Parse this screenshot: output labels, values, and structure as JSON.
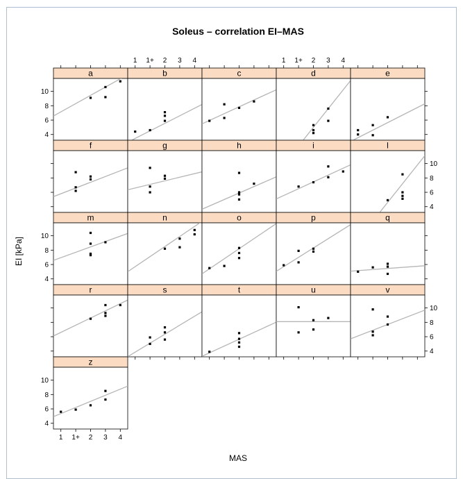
{
  "chart_data": {
    "type": "scatter",
    "title": "Soleus – correlation EI–MAS",
    "xlabel": "MAS",
    "ylabel": "EI [kPa]",
    "x_categories": [
      "1",
      "1+",
      "2",
      "3",
      "4"
    ],
    "xlim": [
      0.5,
      5.5
    ],
    "ylim": [
      3.2,
      11.8
    ],
    "y_ticks": [
      4,
      6,
      8,
      10
    ],
    "grid": false,
    "legend": "none",
    "colors": {
      "strip": "#fbdcc2",
      "point": "#000000",
      "line": "#b5b5b5"
    },
    "panels": [
      {
        "name": "a",
        "points": [
          [
            3,
            9.1
          ],
          [
            4,
            9.2
          ],
          [
            4,
            10.6
          ],
          [
            5,
            11.4
          ]
        ],
        "line": [
          6.0,
          1.15
        ]
      },
      {
        "name": "b",
        "points": [
          [
            1,
            4.4
          ],
          [
            2,
            4.6
          ],
          [
            3,
            5.9
          ],
          [
            3,
            6.6
          ],
          [
            3,
            7.1
          ]
        ],
        "line": [
          2.4,
          1.05
        ]
      },
      {
        "name": "c",
        "points": [
          [
            1,
            5.9
          ],
          [
            2,
            6.3
          ],
          [
            2,
            8.2
          ],
          [
            3,
            7.7
          ],
          [
            4,
            8.6
          ]
        ],
        "line": [
          5.0,
          0.95
        ]
      },
      {
        "name": "d",
        "points": [
          [
            3,
            4.2
          ],
          [
            3,
            4.6
          ],
          [
            3,
            5.3
          ],
          [
            4,
            5.9
          ],
          [
            4,
            7.6
          ]
        ],
        "line": [
          -2.8,
          2.6
        ]
      },
      {
        "name": "e",
        "points": [
          [
            1,
            4.0
          ],
          [
            1,
            4.6
          ],
          [
            2,
            5.3
          ],
          [
            2,
            3.9
          ],
          [
            3,
            6.4
          ]
        ],
        "line": [
          2.5,
          1.05
        ]
      },
      {
        "name": "f",
        "points": [
          [
            2,
            8.8
          ],
          [
            2,
            6.7
          ],
          [
            2,
            6.2
          ],
          [
            3,
            7.8
          ],
          [
            3,
            8.2
          ]
        ],
        "line": [
          5.0,
          0.8
        ]
      },
      {
        "name": "g",
        "points": [
          [
            2,
            9.4
          ],
          [
            2,
            6.8
          ],
          [
            2,
            6.0
          ],
          [
            3,
            7.9
          ],
          [
            3,
            8.3
          ]
        ],
        "line": [
          6.1,
          0.5
        ]
      },
      {
        "name": "h",
        "points": [
          [
            3,
            8.7
          ],
          [
            3,
            6.0
          ],
          [
            3,
            5.7
          ],
          [
            3,
            5.0
          ],
          [
            4,
            7.2
          ]
        ],
        "line": [
          3.2,
          0.9
        ]
      },
      {
        "name": "i",
        "points": [
          [
            2,
            6.8
          ],
          [
            3,
            7.4
          ],
          [
            4,
            8.1
          ],
          [
            4,
            9.6
          ],
          [
            5,
            8.9
          ]
        ],
        "line": [
          4.6,
          0.95
        ]
      },
      {
        "name": "l",
        "points": [
          [
            3,
            4.9
          ],
          [
            4,
            8.5
          ],
          [
            4,
            6.0
          ],
          [
            4,
            5.5
          ],
          [
            4,
            5.1
          ]
        ],
        "line": [
          -3.2,
          2.6
        ]
      },
      {
        "name": "m",
        "points": [
          [
            3,
            10.4
          ],
          [
            3,
            8.9
          ],
          [
            3,
            7.5
          ],
          [
            3,
            7.3
          ],
          [
            4,
            9.1
          ]
        ],
        "line": [
          6.2,
          0.75
        ]
      },
      {
        "name": "n",
        "points": [
          [
            3,
            8.2
          ],
          [
            4,
            8.4
          ],
          [
            4,
            9.6
          ],
          [
            5,
            10.2
          ],
          [
            5,
            10.8
          ]
        ],
        "line": [
          4.3,
          1.4
        ]
      },
      {
        "name": "o",
        "points": [
          [
            1,
            5.5
          ],
          [
            2,
            5.8
          ],
          [
            3,
            6.9
          ],
          [
            3,
            7.6
          ],
          [
            3,
            8.3
          ]
        ],
        "line": [
          4.0,
          1.4
        ]
      },
      {
        "name": "p",
        "points": [
          [
            1,
            5.9
          ],
          [
            2,
            6.3
          ],
          [
            2,
            7.9
          ],
          [
            3,
            7.8
          ],
          [
            3,
            8.2
          ]
        ],
        "line": [
          4.4,
          1.3
        ]
      },
      {
        "name": "q",
        "points": [
          [
            1,
            5.0
          ],
          [
            2,
            5.6
          ],
          [
            3,
            6.1
          ],
          [
            3,
            5.7
          ],
          [
            3,
            4.7
          ]
        ],
        "line": [
          5.0,
          0.15
        ]
      },
      {
        "name": "r",
        "points": [
          [
            3,
            8.5
          ],
          [
            4,
            8.9
          ],
          [
            4,
            9.3
          ],
          [
            4,
            10.4
          ],
          [
            5,
            10.4
          ]
        ],
        "line": [
          5.6,
          1.0
        ]
      },
      {
        "name": "s",
        "points": [
          [
            2,
            5.0
          ],
          [
            2,
            5.9
          ],
          [
            3,
            5.6
          ],
          [
            3,
            6.6
          ],
          [
            3,
            7.3
          ]
        ],
        "line": [
          2.6,
          1.25
        ]
      },
      {
        "name": "t",
        "points": [
          [
            1,
            3.9
          ],
          [
            3,
            4.6
          ],
          [
            3,
            5.2
          ],
          [
            3,
            5.7
          ],
          [
            3,
            6.5
          ]
        ],
        "line": [
          2.8,
          0.95
        ]
      },
      {
        "name": "u",
        "points": [
          [
            2,
            10.1
          ],
          [
            2,
            6.6
          ],
          [
            3,
            8.3
          ],
          [
            3,
            7.0
          ],
          [
            4,
            8.6
          ]
        ],
        "line": [
          8.1,
          0.0
        ]
      },
      {
        "name": "v",
        "points": [
          [
            2,
            9.8
          ],
          [
            2,
            6.7
          ],
          [
            2,
            6.2
          ],
          [
            3,
            7.7
          ],
          [
            3,
            8.8
          ]
        ],
        "line": [
          5.3,
          0.8
        ]
      },
      {
        "name": "z",
        "points": [
          [
            1,
            5.6
          ],
          [
            2,
            5.9
          ],
          [
            3,
            6.5
          ],
          [
            4,
            7.3
          ],
          [
            4,
            8.5
          ]
        ],
        "line": [
          4.5,
          0.85
        ]
      }
    ]
  }
}
